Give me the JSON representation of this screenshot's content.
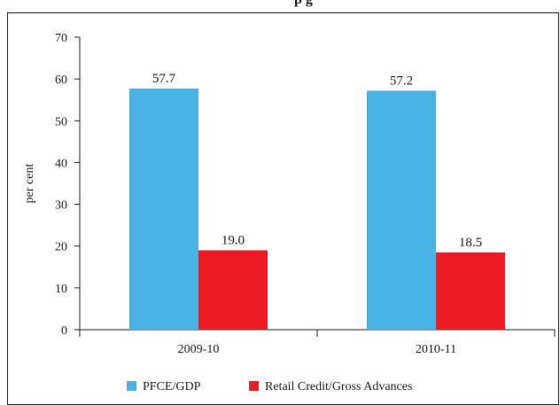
{
  "header": {
    "title_fragment": "p                  g"
  },
  "chart_data": {
    "type": "bar",
    "categories": [
      "2009-10",
      "2010-11"
    ],
    "series": [
      {
        "name": "PFCE/GDP",
        "values": [
          57.7,
          57.2
        ],
        "labels": [
          "57.7",
          "57.2"
        ],
        "color": "#4ab3e6"
      },
      {
        "name": "Retail Credit/Gross Advances",
        "values": [
          19.0,
          18.5
        ],
        "labels": [
          "19.0",
          "18.5"
        ],
        "color": "#ed1c24"
      }
    ],
    "ylabel": "per cent",
    "xlabel": "",
    "ylim": [
      0,
      70
    ],
    "yticks": [
      0,
      10,
      20,
      30,
      40,
      50,
      60,
      70
    ],
    "ytick_labels": [
      "0",
      "10",
      "20",
      "30",
      "40",
      "50",
      "60",
      "70"
    ],
    "grid": false,
    "legend_position": "bottom",
    "frame_color": "#231f20"
  }
}
